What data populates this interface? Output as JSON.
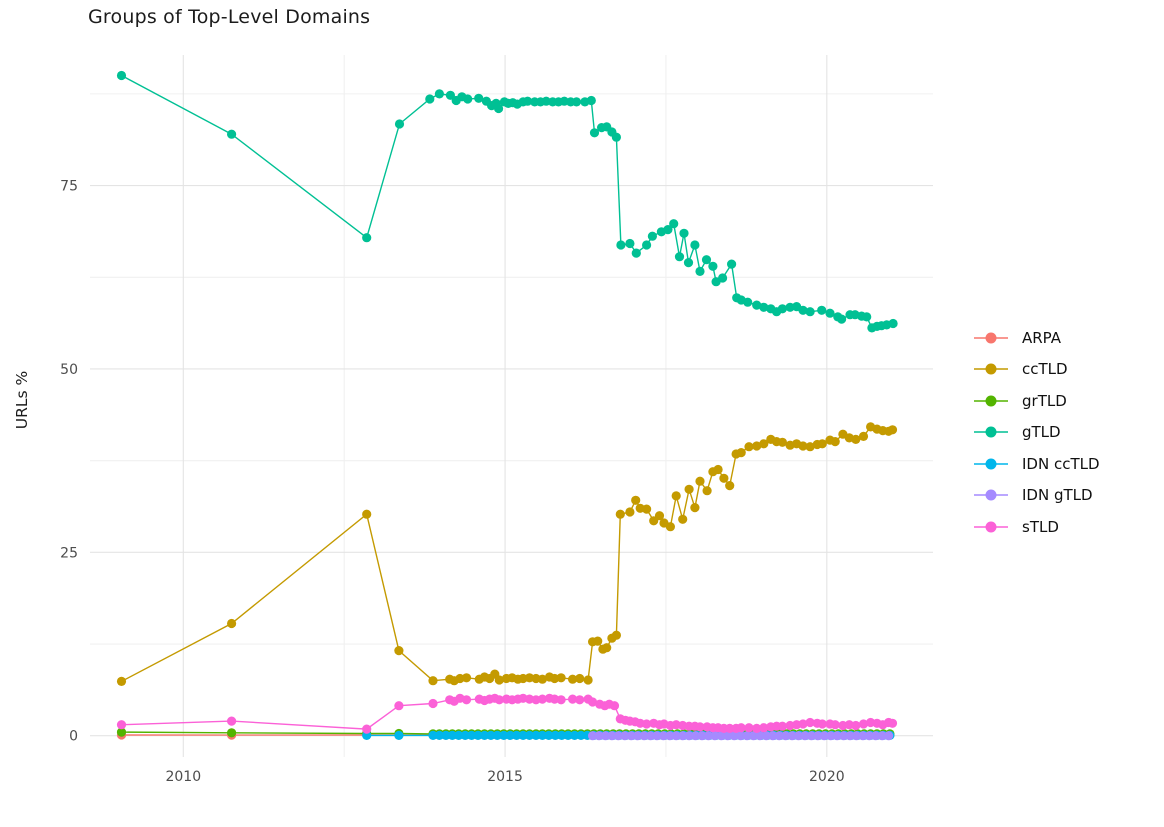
{
  "chart_data": {
    "type": "line",
    "title": "Groups of Top-Level Domains",
    "xlabel": "",
    "ylabel": "URLs %",
    "grid": true,
    "legend_position": "right",
    "x_axis": {
      "ticks": [
        2010,
        2015,
        2020
      ],
      "minor_ticks": [
        2012.5,
        2017.5
      ],
      "range": [
        2008.55,
        2021.65
      ]
    },
    "y_axis": {
      "ticks": [
        0,
        25,
        50,
        75
      ],
      "minor_ticks": [
        12.5,
        37.5,
        62.5,
        87.5
      ],
      "range": [
        -2.9,
        92.8
      ]
    },
    "series": [
      {
        "name": "ARPA",
        "color": "#F8766D",
        "points": [
          [
            2009.04,
            0.1
          ],
          [
            2010.75,
            0.08
          ],
          [
            2012.85,
            0.1
          ],
          [
            2013.35,
            0.08
          ]
        ],
        "flat_tail": {
          "x_start": 2013.88,
          "x_end": 2021.02,
          "x_step": 0.1,
          "value": 0.08
        }
      },
      {
        "name": "ccTLD",
        "color": "#C49A00",
        "points": [
          [
            2009.04,
            7.4
          ],
          [
            2010.75,
            15.3
          ],
          [
            2012.85,
            30.2
          ],
          [
            2013.35,
            11.6
          ],
          [
            2013.88,
            7.5
          ],
          [
            2014.14,
            7.7
          ],
          [
            2014.21,
            7.5
          ],
          [
            2014.3,
            7.8
          ],
          [
            2014.4,
            7.9
          ],
          [
            2014.6,
            7.7
          ],
          [
            2014.68,
            8.0
          ],
          [
            2014.76,
            7.8
          ],
          [
            2014.84,
            8.4
          ],
          [
            2014.91,
            7.6
          ],
          [
            2015.02,
            7.8
          ],
          [
            2015.11,
            7.9
          ],
          [
            2015.2,
            7.7
          ],
          [
            2015.28,
            7.8
          ],
          [
            2015.38,
            7.9
          ],
          [
            2015.48,
            7.8
          ],
          [
            2015.58,
            7.7
          ],
          [
            2015.69,
            8.0
          ],
          [
            2015.77,
            7.8
          ],
          [
            2015.87,
            7.9
          ],
          [
            2016.05,
            7.7
          ],
          [
            2016.16,
            7.8
          ],
          [
            2016.29,
            7.6
          ],
          [
            2016.36,
            12.8
          ],
          [
            2016.44,
            12.9
          ],
          [
            2016.52,
            11.8
          ],
          [
            2016.58,
            12.0
          ],
          [
            2016.66,
            13.3
          ],
          [
            2016.73,
            13.7
          ],
          [
            2016.79,
            30.2
          ],
          [
            2016.94,
            30.5
          ],
          [
            2017.03,
            32.1
          ],
          [
            2017.1,
            31.0
          ],
          [
            2017.2,
            30.9
          ],
          [
            2017.31,
            29.3
          ],
          [
            2017.4,
            30.0
          ],
          [
            2017.47,
            29.0
          ],
          [
            2017.57,
            28.5
          ],
          [
            2017.66,
            32.7
          ],
          [
            2017.76,
            29.5
          ],
          [
            2017.86,
            33.6
          ],
          [
            2017.95,
            31.1
          ],
          [
            2018.03,
            34.7
          ],
          [
            2018.14,
            33.4
          ],
          [
            2018.23,
            36.0
          ],
          [
            2018.31,
            36.3
          ],
          [
            2018.4,
            35.1
          ],
          [
            2018.49,
            34.1
          ],
          [
            2018.59,
            38.4
          ],
          [
            2018.67,
            38.6
          ],
          [
            2018.79,
            39.4
          ],
          [
            2018.91,
            39.5
          ],
          [
            2019.02,
            39.8
          ],
          [
            2019.13,
            40.4
          ],
          [
            2019.22,
            40.1
          ],
          [
            2019.31,
            40.0
          ],
          [
            2019.43,
            39.6
          ],
          [
            2019.53,
            39.8
          ],
          [
            2019.63,
            39.5
          ],
          [
            2019.74,
            39.4
          ],
          [
            2019.85,
            39.7
          ],
          [
            2019.93,
            39.8
          ],
          [
            2020.05,
            40.3
          ],
          [
            2020.13,
            40.1
          ],
          [
            2020.25,
            41.1
          ],
          [
            2020.35,
            40.6
          ],
          [
            2020.45,
            40.4
          ],
          [
            2020.57,
            40.8
          ],
          [
            2020.68,
            42.1
          ],
          [
            2020.78,
            41.8
          ],
          [
            2020.87,
            41.6
          ],
          [
            2020.96,
            41.5
          ],
          [
            2021.02,
            41.7
          ]
        ]
      },
      {
        "name": "grTLD",
        "color": "#53B400",
        "points": [
          [
            2009.04,
            0.5
          ],
          [
            2010.75,
            0.4
          ],
          [
            2012.85,
            0.3
          ],
          [
            2013.35,
            0.3
          ]
        ],
        "flat_tail": {
          "x_start": 2013.88,
          "x_end": 2021.02,
          "x_step": 0.1,
          "value": 0.25
        }
      },
      {
        "name": "gTLD",
        "color": "#00C094",
        "points": [
          [
            2009.04,
            90.0
          ],
          [
            2010.75,
            82.0
          ],
          [
            2012.85,
            67.9
          ],
          [
            2013.36,
            83.4
          ],
          [
            2013.83,
            86.8
          ],
          [
            2013.98,
            87.5
          ],
          [
            2014.15,
            87.3
          ],
          [
            2014.24,
            86.6
          ],
          [
            2014.33,
            87.1
          ],
          [
            2014.42,
            86.8
          ],
          [
            2014.59,
            86.9
          ],
          [
            2014.71,
            86.5
          ],
          [
            2014.79,
            85.9
          ],
          [
            2014.86,
            86.2
          ],
          [
            2014.9,
            85.5
          ],
          [
            2014.99,
            86.4
          ],
          [
            2015.05,
            86.2
          ],
          [
            2015.12,
            86.3
          ],
          [
            2015.19,
            86.1
          ],
          [
            2015.28,
            86.4
          ],
          [
            2015.35,
            86.5
          ],
          [
            2015.46,
            86.4
          ],
          [
            2015.55,
            86.4
          ],
          [
            2015.64,
            86.5
          ],
          [
            2015.74,
            86.4
          ],
          [
            2015.83,
            86.4
          ],
          [
            2015.92,
            86.5
          ],
          [
            2016.02,
            86.4
          ],
          [
            2016.11,
            86.4
          ],
          [
            2016.24,
            86.4
          ],
          [
            2016.34,
            86.6
          ],
          [
            2016.39,
            82.2
          ],
          [
            2016.5,
            82.9
          ],
          [
            2016.58,
            83.0
          ],
          [
            2016.66,
            82.3
          ],
          [
            2016.73,
            81.6
          ],
          [
            2016.8,
            66.9
          ],
          [
            2016.94,
            67.1
          ],
          [
            2017.04,
            65.8
          ],
          [
            2017.2,
            66.9
          ],
          [
            2017.29,
            68.1
          ],
          [
            2017.43,
            68.7
          ],
          [
            2017.53,
            69.0
          ],
          [
            2017.62,
            69.8
          ],
          [
            2017.71,
            65.3
          ],
          [
            2017.78,
            68.5
          ],
          [
            2017.85,
            64.5
          ],
          [
            2017.95,
            66.9
          ],
          [
            2018.03,
            63.3
          ],
          [
            2018.13,
            64.9
          ],
          [
            2018.23,
            64.0
          ],
          [
            2018.28,
            61.9
          ],
          [
            2018.38,
            62.4
          ],
          [
            2018.52,
            64.3
          ],
          [
            2018.6,
            59.7
          ],
          [
            2018.67,
            59.4
          ],
          [
            2018.77,
            59.1
          ],
          [
            2018.91,
            58.7
          ],
          [
            2019.02,
            58.4
          ],
          [
            2019.13,
            58.2
          ],
          [
            2019.22,
            57.8
          ],
          [
            2019.31,
            58.2
          ],
          [
            2019.43,
            58.4
          ],
          [
            2019.53,
            58.5
          ],
          [
            2019.63,
            58.0
          ],
          [
            2019.74,
            57.8
          ],
          [
            2019.92,
            58.0
          ],
          [
            2020.05,
            57.6
          ],
          [
            2020.17,
            57.1
          ],
          [
            2020.23,
            56.8
          ],
          [
            2020.36,
            57.4
          ],
          [
            2020.44,
            57.4
          ],
          [
            2020.54,
            57.2
          ],
          [
            2020.62,
            57.1
          ],
          [
            2020.7,
            55.6
          ],
          [
            2020.78,
            55.8
          ],
          [
            2020.85,
            55.9
          ],
          [
            2020.93,
            56.0
          ],
          [
            2021.03,
            56.2
          ]
        ]
      },
      {
        "name": "IDN ccTLD",
        "color": "#00B6EB",
        "points": [
          [
            2012.85,
            0.05
          ],
          [
            2013.35,
            0.05
          ]
        ],
        "flat_tail": {
          "x_start": 2013.88,
          "x_end": 2021.02,
          "x_step": 0.1,
          "value": 0.05
        }
      },
      {
        "name": "IDN gTLD",
        "color": "#A58AFF",
        "points": [],
        "flat_tail": {
          "x_start": 2016.36,
          "x_end": 2021.02,
          "x_step": 0.1,
          "value": 0.0
        }
      },
      {
        "name": "sTLD",
        "color": "#FB61D7",
        "points": [
          [
            2009.04,
            1.5
          ],
          [
            2010.75,
            2.0
          ],
          [
            2012.85,
            0.9
          ],
          [
            2013.35,
            4.1
          ],
          [
            2013.88,
            4.4
          ],
          [
            2014.14,
            4.9
          ],
          [
            2014.21,
            4.7
          ],
          [
            2014.3,
            5.1
          ],
          [
            2014.4,
            4.9
          ],
          [
            2014.6,
            5.0
          ],
          [
            2014.68,
            4.8
          ],
          [
            2014.76,
            5.0
          ],
          [
            2014.84,
            5.1
          ],
          [
            2014.91,
            4.9
          ],
          [
            2015.02,
            5.0
          ],
          [
            2015.11,
            4.9
          ],
          [
            2015.2,
            5.0
          ],
          [
            2015.28,
            5.1
          ],
          [
            2015.38,
            5.0
          ],
          [
            2015.48,
            4.9
          ],
          [
            2015.58,
            5.0
          ],
          [
            2015.69,
            5.1
          ],
          [
            2015.77,
            5.0
          ],
          [
            2015.87,
            4.9
          ],
          [
            2016.05,
            5.0
          ],
          [
            2016.16,
            4.9
          ],
          [
            2016.29,
            5.0
          ],
          [
            2016.36,
            4.6
          ],
          [
            2016.47,
            4.3
          ],
          [
            2016.55,
            4.1
          ],
          [
            2016.62,
            4.3
          ],
          [
            2016.7,
            4.1
          ],
          [
            2016.79,
            2.3
          ],
          [
            2016.87,
            2.1
          ],
          [
            2016.94,
            2.0
          ],
          [
            2017.02,
            1.9
          ],
          [
            2017.1,
            1.7
          ],
          [
            2017.2,
            1.6
          ],
          [
            2017.31,
            1.7
          ],
          [
            2017.4,
            1.5
          ],
          [
            2017.47,
            1.6
          ],
          [
            2017.57,
            1.4
          ],
          [
            2017.66,
            1.5
          ],
          [
            2017.76,
            1.4
          ],
          [
            2017.86,
            1.3
          ],
          [
            2017.95,
            1.3
          ],
          [
            2018.03,
            1.2
          ],
          [
            2018.14,
            1.2
          ],
          [
            2018.23,
            1.1
          ],
          [
            2018.31,
            1.1
          ],
          [
            2018.4,
            1.0
          ],
          [
            2018.49,
            1.0
          ],
          [
            2018.59,
            1.0
          ],
          [
            2018.67,
            1.1
          ],
          [
            2018.79,
            1.1
          ],
          [
            2018.91,
            1.0
          ],
          [
            2019.02,
            1.1
          ],
          [
            2019.13,
            1.2
          ],
          [
            2019.22,
            1.3
          ],
          [
            2019.31,
            1.3
          ],
          [
            2019.43,
            1.4
          ],
          [
            2019.53,
            1.5
          ],
          [
            2019.63,
            1.6
          ],
          [
            2019.74,
            1.8
          ],
          [
            2019.85,
            1.7
          ],
          [
            2019.93,
            1.6
          ],
          [
            2020.05,
            1.6
          ],
          [
            2020.13,
            1.5
          ],
          [
            2020.25,
            1.4
          ],
          [
            2020.35,
            1.5
          ],
          [
            2020.45,
            1.4
          ],
          [
            2020.57,
            1.6
          ],
          [
            2020.68,
            1.8
          ],
          [
            2020.78,
            1.7
          ],
          [
            2020.87,
            1.5
          ],
          [
            2020.96,
            1.8
          ],
          [
            2021.02,
            1.7
          ]
        ]
      }
    ],
    "style": {
      "major_grid_color": "#e4e4e4",
      "minor_grid_color": "#f0f0f0",
      "tick_label_color": "#4d4d4d",
      "title_color": "#1c1c1c",
      "point_radius": 4.6,
      "line_width": 1.4
    }
  }
}
